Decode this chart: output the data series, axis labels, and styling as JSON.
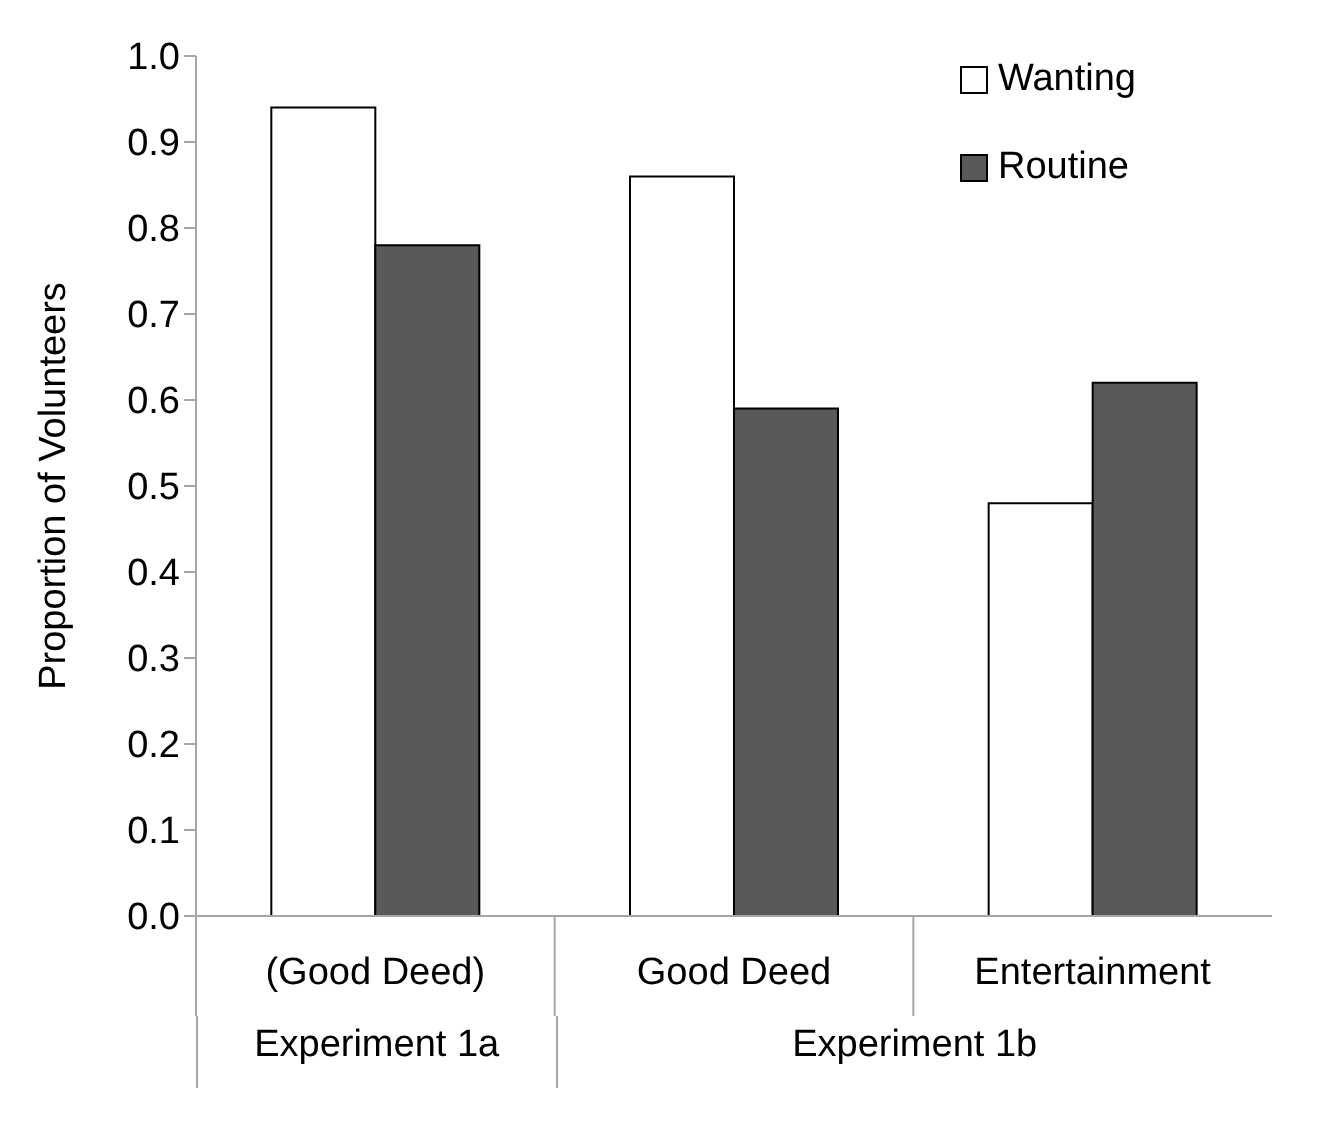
{
  "chart_data": {
    "type": "bar",
    "ylabel": "Proportion of Volunteers",
    "categories": [
      "(Good Deed)",
      "Good Deed",
      "Entertainment"
    ],
    "series": [
      {
        "name": "Wanting",
        "color": "#ffffff",
        "values": [
          0.94,
          0.86,
          0.48
        ]
      },
      {
        "name": "Routine",
        "color": "#595959",
        "values": [
          0.78,
          0.59,
          0.62
        ]
      }
    ],
    "ylim": [
      0,
      1
    ],
    "yticks": [
      {
        "value": 0,
        "label": "0.0"
      },
      0.1,
      0.2,
      0.3,
      0.4,
      0.5,
      0.6,
      0.7,
      0.8,
      0.9,
      {
        "value": 1,
        "label": "1.0"
      }
    ],
    "annotations": [
      "Experiment 1a",
      "Experiment 1b"
    ],
    "legend": "top right",
    "grid": false
  }
}
